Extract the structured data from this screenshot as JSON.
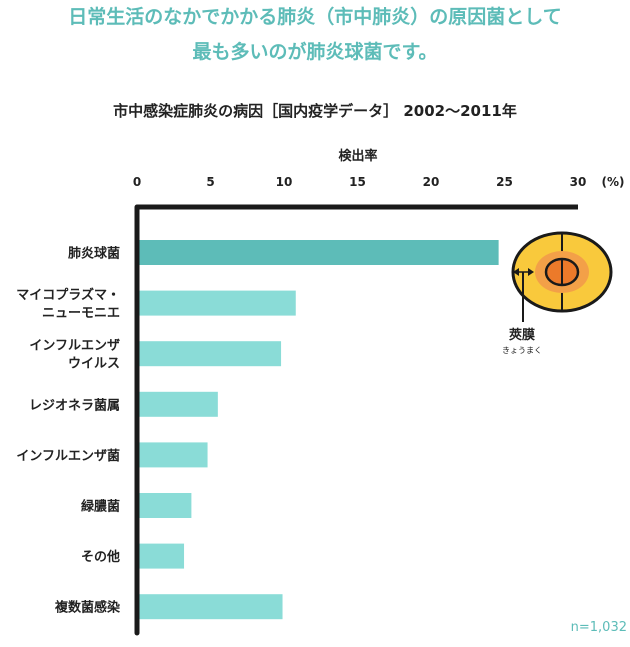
{
  "headline": {
    "line1": "日常生活のなかでかかる肺炎（市中肺炎）の原因菌として",
    "line2": "最も多いのが肺炎球菌です。"
  },
  "chart_data": {
    "type": "bar",
    "orientation": "horizontal",
    "title": "市中感染症肺炎の病因［国内疫学データ］ 2002〜2011年",
    "xlabel": "検出率",
    "unit_label": "(%)",
    "xlim": [
      0,
      30
    ],
    "ticks": [
      "0",
      "5",
      "10",
      "15",
      "20",
      "25",
      "30"
    ],
    "categories": [
      [
        "肺炎球菌"
      ],
      [
        "マイコプラズマ・",
        "ニューモニエ"
      ],
      [
        "インフルエンザ",
        "ウイルス"
      ],
      [
        "レジオネラ菌属"
      ],
      [
        "インフルエンザ菌"
      ],
      [
        "緑膿菌"
      ],
      [
        "その他"
      ],
      [
        "複数菌感染"
      ]
    ],
    "values": [
      24.6,
      10.8,
      9.8,
      5.5,
      4.8,
      3.7,
      3.2,
      9.9
    ],
    "colors": {
      "highlight": "#5dbcb8",
      "bar": "#8adcd7",
      "axis": "#1a1a1a"
    },
    "grid": false,
    "note": "n=1,032"
  },
  "annotation": {
    "label": "莢膜",
    "reading": "きょうまく"
  },
  "colors": {
    "capsule": "#f9c93c",
    "inner": "#f3a048",
    "core": "#ec7a2a",
    "outline": "#1a1a1a"
  }
}
